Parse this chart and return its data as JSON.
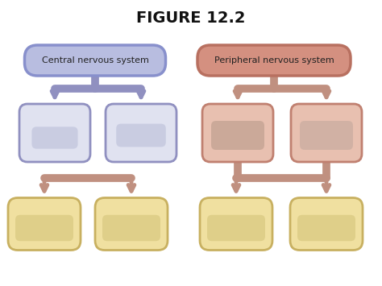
{
  "title": "FIGURE 12.2",
  "title_fontsize": 14,
  "background_color": "#ffffff",
  "cns_label": "Central nervous system",
  "pns_label": "Peripheral nervous system",
  "cns_box_fill": "#b8bde0",
  "cns_box_edge": "#8890cc",
  "cns_child_fill": "#e0e2f0",
  "cns_child_edge": "#9090c0",
  "pns_box_fill": "#d49080",
  "pns_box_edge": "#b87060",
  "pns_child_fill": "#e8c0b0",
  "pns_child_edge": "#c08070",
  "yellow_fill": "#f0e0a0",
  "yellow_edge": "#c8b060",
  "yellow_inner": "#d8c880",
  "arrow_cns": "#9090c0",
  "arrow_pns": "#c09080",
  "cns_inner": "#c0c4dc",
  "pns_inner_l": "#c0a090",
  "pns_inner_r": "#c8aca0"
}
